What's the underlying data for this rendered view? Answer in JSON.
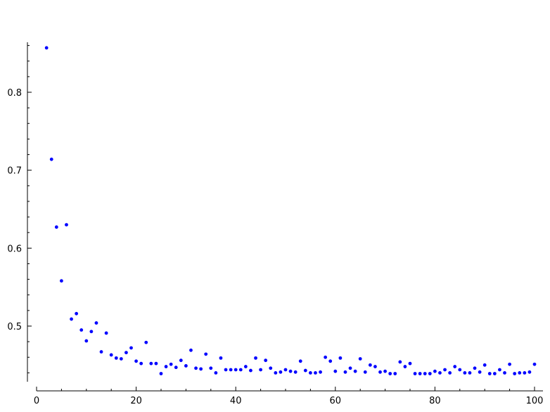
{
  "chart_data": {
    "type": "scatter",
    "title": "",
    "xlabel": "",
    "ylabel": "",
    "xlim": [
      0,
      102
    ],
    "ylim": [
      0.43,
      0.865
    ],
    "grid": false,
    "point_color": "#0000ff",
    "x_ticks": [
      0,
      20,
      40,
      60,
      80,
      100
    ],
    "y_ticks": [
      0.5,
      0.6,
      0.7,
      0.8
    ],
    "x_tick_labels": [
      "0",
      "20",
      "40",
      "60",
      "80",
      "100"
    ],
    "y_tick_labels": [
      "0.5",
      "0.6",
      "0.7",
      "0.8"
    ],
    "series": [
      {
        "x": [
          2,
          3,
          4,
          5,
          6,
          7,
          8,
          9,
          10,
          11,
          12,
          13,
          14,
          15,
          16,
          17,
          18,
          19,
          20,
          21,
          22,
          23,
          24,
          25,
          26,
          27,
          28,
          29,
          30,
          31,
          32,
          33,
          34,
          35,
          36,
          37,
          38,
          39,
          40,
          41,
          42,
          43,
          44,
          45,
          46,
          47,
          48,
          49,
          50,
          51,
          52,
          53,
          54,
          55,
          56,
          57,
          58,
          59,
          60,
          61,
          62,
          63,
          64,
          65,
          66,
          67,
          68,
          69,
          70,
          71,
          72,
          73,
          74,
          75,
          76,
          77,
          78,
          79,
          80,
          81,
          82,
          83,
          84,
          85,
          86,
          87,
          88,
          89,
          90,
          91,
          92,
          93,
          94,
          95,
          96,
          97,
          98,
          99,
          100
        ],
        "values": [
          0.857,
          0.714,
          0.627,
          0.558,
          0.63,
          0.509,
          0.516,
          0.495,
          0.481,
          0.493,
          0.504,
          0.467,
          0.491,
          0.463,
          0.459,
          0.458,
          0.466,
          0.472,
          0.455,
          0.452,
          0.479,
          0.452,
          0.452,
          0.439,
          0.448,
          0.451,
          0.447,
          0.456,
          0.449,
          0.469,
          0.446,
          0.445,
          0.464,
          0.446,
          0.44,
          0.459,
          0.444,
          0.444,
          0.444,
          0.444,
          0.448,
          0.443,
          0.459,
          0.444,
          0.456,
          0.446,
          0.44,
          0.441,
          0.444,
          0.442,
          0.441,
          0.455,
          0.443,
          0.44,
          0.44,
          0.441,
          0.46,
          0.455,
          0.442,
          0.459,
          0.441,
          0.446,
          0.442,
          0.458,
          0.441,
          0.45,
          0.448,
          0.441,
          0.442,
          0.439,
          0.439,
          0.454,
          0.448,
          0.452,
          0.439,
          0.439,
          0.439,
          0.439,
          0.442,
          0.44,
          0.444,
          0.44,
          0.448,
          0.444,
          0.44,
          0.44,
          0.446,
          0.441,
          0.45,
          0.439,
          0.439,
          0.444,
          0.44,
          0.451,
          0.439,
          0.44,
          0.44,
          0.441,
          0.451
        ]
      }
    ]
  }
}
